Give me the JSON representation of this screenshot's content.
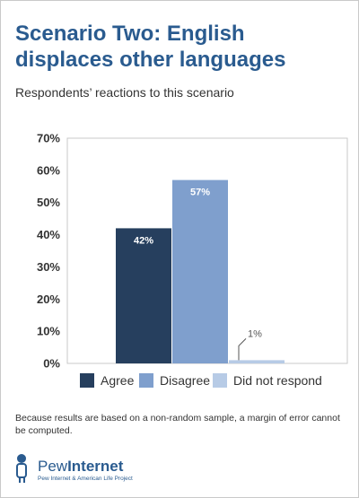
{
  "title_line1": "Scenario Two: English",
  "title_line2": "displaces other languages",
  "subtitle": "Respondents’ reactions to this scenario",
  "footnote": "Because results are based on a non-random sample, a margin of error cannot be computed.",
  "logo": {
    "word_pew": "Pew",
    "word_internet": "Internet",
    "tagline": "Pew Internet & American Life Project",
    "color": "#2a5b8f"
  },
  "chart_data": {
    "type": "bar",
    "categories": [
      "Agree",
      "Disagree",
      "Did not respond"
    ],
    "values": [
      42,
      57,
      1
    ],
    "data_labels": [
      "42%",
      "57%",
      "1%"
    ],
    "colors": [
      "#263f5e",
      "#7f9fcd",
      "#b7cbe6"
    ],
    "ylim": [
      0,
      70
    ],
    "yticks": [
      0,
      10,
      20,
      30,
      40,
      50,
      60,
      70
    ],
    "ytick_labels": [
      "0%",
      "10%",
      "20%",
      "30%",
      "40%",
      "50%",
      "60%",
      "70%"
    ],
    "grid": false,
    "legend_position": "bottom"
  }
}
